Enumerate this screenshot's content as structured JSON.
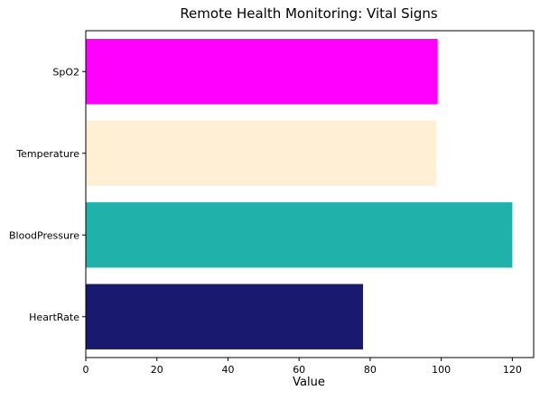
{
  "chart_data": {
    "type": "bar",
    "orientation": "horizontal",
    "title": "Remote Health Monitoring: Vital Signs",
    "xlabel": "Value",
    "ylabel": "",
    "categories": [
      "HeartRate",
      "BloodPressure",
      "Temperature",
      "SpO2"
    ],
    "values": [
      78,
      120,
      98.6,
      99
    ],
    "colors": [
      "#191970",
      "#20B2AA",
      "#FFEFD5",
      "#FF00FF"
    ],
    "xlim": [
      0,
      126
    ],
    "xticks": [
      0,
      20,
      40,
      60,
      80,
      100,
      120
    ],
    "grid": false,
    "legend": "none"
  }
}
